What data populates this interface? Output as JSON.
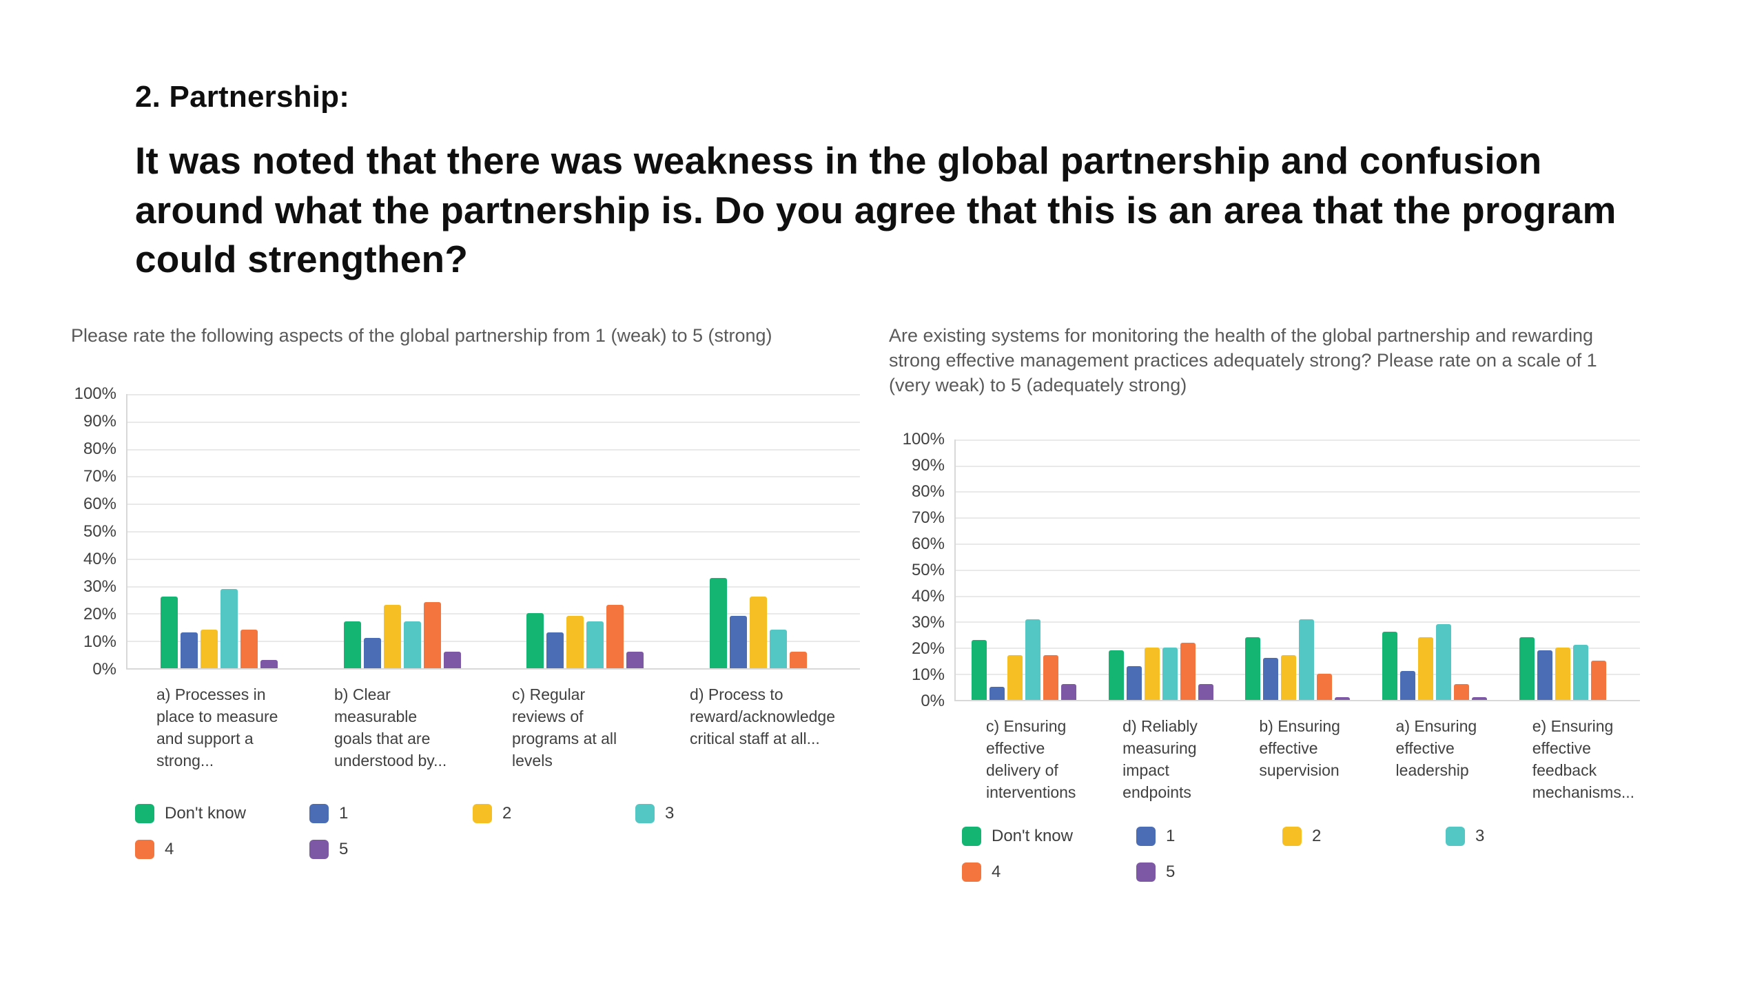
{
  "slide": {
    "heading": "2. Partnership:",
    "question": "It was noted that there was weakness in the global partnership and confusion around what the partnership is. Do you agree that this is an area that the program could strengthen?"
  },
  "chart_data": [
    {
      "type": "bar",
      "title": "Please rate the following aspects of the global partnership from 1 (weak) to 5 (strong)",
      "xlabel": "",
      "ylabel": "",
      "ylim": [
        0,
        100
      ],
      "grid": true,
      "legend_position": "bottom",
      "yticks": [
        "100%",
        "90%",
        "80%",
        "70%",
        "60%",
        "50%",
        "40%",
        "30%",
        "20%",
        "10%",
        "0%"
      ],
      "categories": [
        "a) Processes in place to measure and support a strong...",
        "b) Clear measurable goals that are understood by...",
        "c) Regular reviews of programs at all levels",
        "d) Process to reward/acknowledge critical staff at all..."
      ],
      "series": [
        {
          "name": "Don't know",
          "color": "#14B573",
          "values": [
            26,
            17,
            20,
            33
          ]
        },
        {
          "name": "1",
          "color": "#4A6DB5",
          "values": [
            13,
            11,
            13,
            19
          ]
        },
        {
          "name": "2",
          "color": "#F6C025",
          "values": [
            14,
            23,
            19,
            26
          ]
        },
        {
          "name": "3",
          "color": "#52C7C3",
          "values": [
            29,
            17,
            17,
            14
          ]
        },
        {
          "name": "4",
          "color": "#F4753E",
          "values": [
            14,
            24,
            23,
            6
          ]
        },
        {
          "name": "5",
          "color": "#7C58A5",
          "values": [
            3,
            6,
            6,
            0
          ]
        }
      ]
    },
    {
      "type": "bar",
      "title": "Are existing systems for monitoring the health of the global partnership and rewarding strong effective management practices adequately strong? Please rate on a scale of 1 (very weak) to 5 (adequately strong)",
      "xlabel": "",
      "ylabel": "",
      "ylim": [
        0,
        100
      ],
      "grid": true,
      "legend_position": "bottom",
      "yticks": [
        "100%",
        "90%",
        "80%",
        "70%",
        "60%",
        "50%",
        "40%",
        "30%",
        "20%",
        "10%",
        "0%"
      ],
      "categories": [
        "c) Ensuring effective delivery of interventions",
        "d) Reliably measuring impact endpoints",
        "b) Ensuring effective supervision",
        "a) Ensuring effective leadership",
        "e) Ensuring effective feedback mechanisms..."
      ],
      "series": [
        {
          "name": "Don't know",
          "color": "#14B573",
          "values": [
            23,
            19,
            24,
            26,
            24
          ]
        },
        {
          "name": "1",
          "color": "#4A6DB5",
          "values": [
            5,
            13,
            16,
            11,
            19
          ]
        },
        {
          "name": "2",
          "color": "#F6C025",
          "values": [
            17,
            20,
            17,
            24,
            20
          ]
        },
        {
          "name": "3",
          "color": "#52C7C3",
          "values": [
            31,
            20,
            31,
            29,
            21
          ]
        },
        {
          "name": "4",
          "color": "#F4753E",
          "values": [
            17,
            22,
            10,
            6,
            15
          ]
        },
        {
          "name": "5",
          "color": "#7C58A5",
          "values": [
            6,
            6,
            1,
            1,
            0
          ]
        }
      ]
    }
  ]
}
